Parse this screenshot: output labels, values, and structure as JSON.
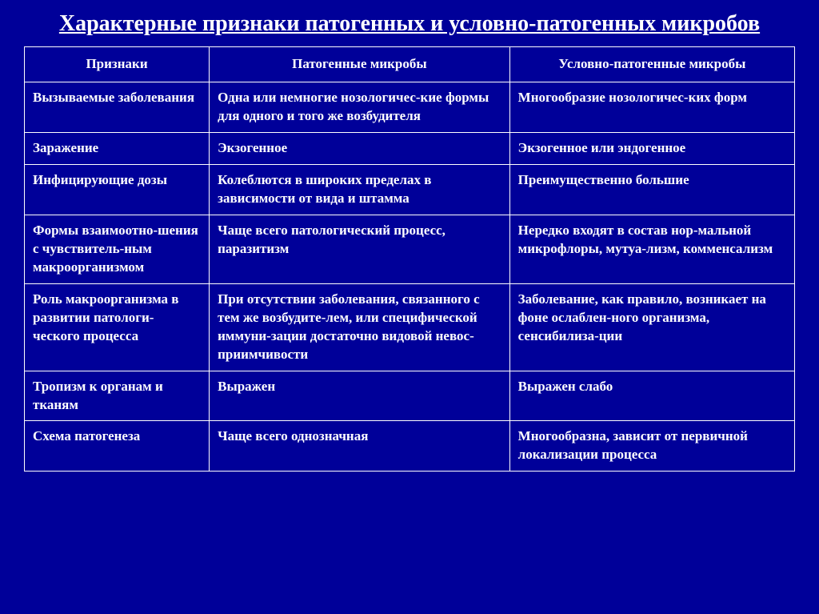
{
  "title": "Характерные признаки патогенных и условно-патогенных микробов",
  "columns": [
    "Признаки",
    "Патогенные микробы",
    "Условно-патогенные микробы"
  ],
  "rows": [
    [
      "Вызываемые заболевания",
      "Одна или немногие нозологичес-кие формы для одного и того же возбудителя",
      "Многообразие нозологичес-ких форм"
    ],
    [
      "Заражение",
      "Экзогенное",
      "Экзогенное или эндогенное"
    ],
    [
      "Инфицирующие дозы",
      "Колеблются в широких пределах в зависимости от вида и штамма",
      "Преимущественно большие"
    ],
    [
      "Формы взаимоотно-шения с чувствитель-ным макроорганизмом",
      "Чаще всего патологический процесс, паразитизм",
      "Нередко входят в состав нор-мальной микрофлоры, мутуа-лизм, комменсализм"
    ],
    [
      "Роль макроорганизма в развитии патологи-ческого процесса",
      "При отсутствии заболевания, связанного с тем же возбудите-лем, или специфической иммуни-зации достаточно видовой невос-приимчивости",
      "Заболевание, как правило, возникает на фоне ослаблен-ного организма, сенсибилиза-ции"
    ],
    [
      "Тропизм к  органам и тканям",
      "Выражен",
      "Выражен слабо"
    ],
    [
      "Схема патогенеза",
      "Чаще всего однозначная",
      "Многообразна, зависит от первичной локализации процесса"
    ]
  ],
  "colors": {
    "background": "#000099",
    "border": "#ffffff",
    "text": "#ffffff"
  },
  "column_widths": [
    "24%",
    "39%",
    "37%"
  ]
}
